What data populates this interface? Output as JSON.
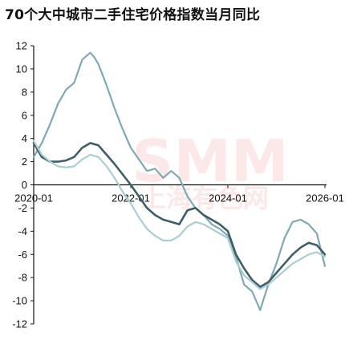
{
  "title": "70个大中城市二手住宅价格指数当月同比",
  "watermark": {
    "main": "SMM",
    "sub": "上海有色网"
  },
  "colors": {
    "light": "#a9cdd0",
    "mid": "#7fa9b3",
    "dark": "#3f5e68",
    "axis": "#111111"
  },
  "chart_data": {
    "type": "line",
    "title": "70个大中城市二手住宅价格指数当月同比",
    "xlabel": "",
    "ylabel": "",
    "x_ticks": [
      "2020-01",
      "2022-01",
      "2024-01",
      "2026-01"
    ],
    "xlim": [
      "2020-01",
      "2026-01"
    ],
    "ylim": [
      -12,
      12
    ],
    "y_ticks": [
      12,
      10,
      8,
      6,
      4,
      2,
      0,
      -2,
      -4,
      -6,
      -8,
      -10,
      -12
    ],
    "grid": false,
    "legend": "none",
    "series": [
      {
        "color": "#7fa9b3",
        "x": [
          "2020-01",
          "2020-03",
          "2020-05",
          "2020-07",
          "2020-09",
          "2020-11",
          "2021-01",
          "2021-03",
          "2021-04",
          "2021-05",
          "2021-07",
          "2021-09",
          "2021-11",
          "2022-01",
          "2022-03",
          "2022-05",
          "2022-07",
          "2022-09",
          "2022-11",
          "2023-01",
          "2023-03",
          "2023-05",
          "2023-07",
          "2023-09",
          "2023-11",
          "2024-01",
          "2024-03",
          "2024-05",
          "2024-07",
          "2024-09",
          "2024-11",
          "2025-01",
          "2025-03",
          "2025-05",
          "2025-07",
          "2025-09",
          "2025-11",
          "2026-01"
        ],
        "y": [
          2.4,
          3.6,
          5.2,
          7.0,
          8.2,
          8.8,
          10.8,
          11.4,
          11.0,
          10.4,
          8.6,
          6.6,
          4.8,
          3.2,
          2.2,
          1.2,
          1.4,
          0.6,
          1.2,
          0.6,
          -1.0,
          -2.0,
          -2.6,
          -3.4,
          -3.8,
          -4.4,
          -6.2,
          -8.6,
          -9.2,
          -10.8,
          -8.6,
          -6.8,
          -4.6,
          -3.2,
          -3.0,
          -3.4,
          -4.2,
          -7.0
        ]
      },
      {
        "color": "#3f5e68",
        "x": [
          "2020-01",
          "2020-03",
          "2020-05",
          "2020-07",
          "2020-09",
          "2020-11",
          "2021-01",
          "2021-03",
          "2021-05",
          "2021-07",
          "2021-09",
          "2021-11",
          "2022-01",
          "2022-03",
          "2022-05",
          "2022-07",
          "2022-09",
          "2022-11",
          "2023-01",
          "2023-03",
          "2023-05",
          "2023-07",
          "2023-09",
          "2023-11",
          "2024-01",
          "2024-03",
          "2024-05",
          "2024-07",
          "2024-09",
          "2024-11",
          "2025-01",
          "2025-03",
          "2025-05",
          "2025-07",
          "2025-09",
          "2025-11",
          "2026-01"
        ],
        "y": [
          3.6,
          2.4,
          2.0,
          2.0,
          2.1,
          2.4,
          3.2,
          3.6,
          3.4,
          2.6,
          1.8,
          0.9,
          0.0,
          -1.0,
          -2.0,
          -2.6,
          -3.0,
          -3.2,
          -3.4,
          -2.2,
          -2.0,
          -2.6,
          -3.0,
          -3.4,
          -4.0,
          -6.0,
          -7.2,
          -8.2,
          -8.8,
          -8.4,
          -7.6,
          -6.8,
          -6.0,
          -5.4,
          -5.0,
          -5.2,
          -6.0
        ]
      },
      {
        "color": "#a9cdd0",
        "x": [
          "2020-01",
          "2020-03",
          "2020-05",
          "2020-07",
          "2020-09",
          "2020-11",
          "2021-01",
          "2021-03",
          "2021-05",
          "2021-07",
          "2021-09",
          "2021-11",
          "2022-01",
          "2022-03",
          "2022-05",
          "2022-07",
          "2022-09",
          "2022-11",
          "2023-01",
          "2023-03",
          "2023-05",
          "2023-07",
          "2023-09",
          "2023-11",
          "2024-01",
          "2024-03",
          "2024-05",
          "2024-07",
          "2024-09",
          "2024-11",
          "2025-01",
          "2025-03",
          "2025-05",
          "2025-07",
          "2025-09",
          "2025-11",
          "2026-01"
        ],
        "y": [
          3.8,
          2.6,
          2.0,
          1.6,
          1.5,
          1.6,
          2.2,
          2.6,
          2.4,
          1.6,
          0.6,
          -0.6,
          -1.6,
          -2.8,
          -3.8,
          -4.4,
          -4.8,
          -4.8,
          -4.4,
          -3.6,
          -3.2,
          -3.4,
          -3.8,
          -4.2,
          -4.6,
          -6.6,
          -7.8,
          -8.4,
          -9.0,
          -8.6,
          -8.0,
          -7.4,
          -6.8,
          -6.4,
          -6.0,
          -5.8,
          -6.2
        ]
      }
    ]
  }
}
